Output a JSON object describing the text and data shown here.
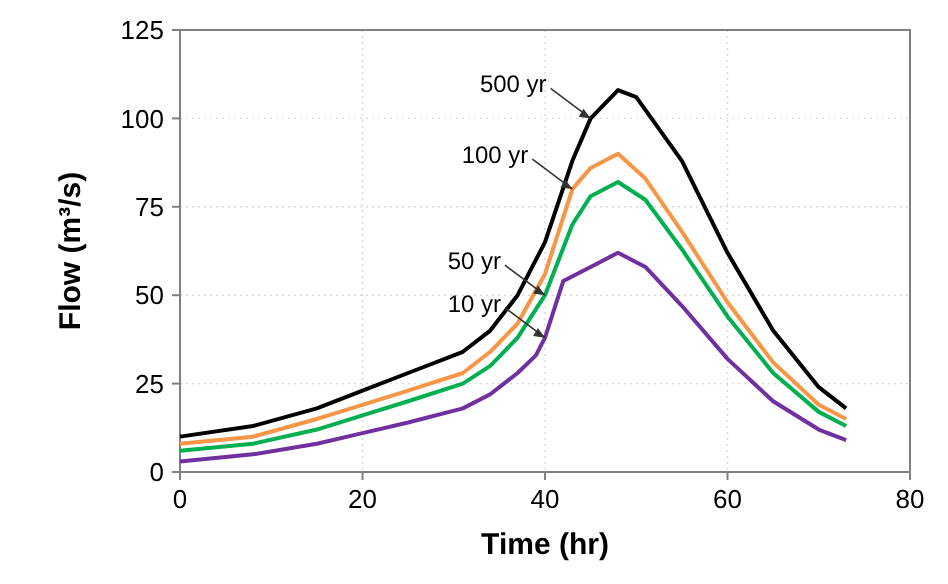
{
  "chart_data": {
    "type": "line",
    "xlabel": "Time (hr)",
    "ylabel": "Flow (m³/s)",
    "xlim": [
      0,
      80
    ],
    "ylim": [
      0,
      125
    ],
    "xticks": [
      0,
      20,
      40,
      60,
      80
    ],
    "yticks": [
      0,
      25,
      50,
      75,
      100,
      125
    ],
    "grid": true,
    "marker": "none",
    "line_style": "solid",
    "series": [
      {
        "color": "#000000",
        "x": [
          0,
          8,
          15,
          20,
          25,
          31,
          34,
          37,
          40,
          43,
          45,
          48,
          50,
          55,
          60,
          65,
          70,
          73
        ],
        "values": [
          10,
          13,
          18,
          23,
          28,
          34,
          40,
          50,
          65,
          88,
          100,
          108,
          106,
          88,
          62,
          40,
          24,
          18
        ]
      },
      {
        "color": "#f79646",
        "x": [
          0,
          8,
          15,
          20,
          25,
          31,
          34,
          37,
          40,
          43,
          45,
          48,
          51,
          55,
          60,
          65,
          70,
          73
        ],
        "values": [
          8,
          10,
          15,
          19,
          23,
          28,
          34,
          42,
          56,
          80,
          86,
          90,
          83,
          68,
          48,
          31,
          19,
          15
        ]
      },
      {
        "color": "#00b050",
        "x": [
          0,
          8,
          15,
          20,
          25,
          31,
          34,
          37,
          40,
          43,
          45,
          48,
          51,
          55,
          60,
          65,
          70,
          73
        ],
        "values": [
          6,
          8,
          12,
          16,
          20,
          25,
          30,
          38,
          50,
          70,
          78,
          82,
          77,
          63,
          44,
          28,
          17,
          13
        ]
      },
      {
        "color": "#7030a0",
        "x": [
          0,
          8,
          15,
          20,
          25,
          31,
          34,
          37,
          39,
          40,
          42,
          45,
          48,
          51,
          55,
          60,
          65,
          70,
          73
        ],
        "values": [
          3,
          5,
          8,
          11,
          14,
          18,
          22,
          28,
          33,
          38,
          54,
          58,
          62,
          58,
          47,
          32,
          20,
          12,
          9
        ]
      }
    ],
    "annotations": [
      {
        "text": "500 yr",
        "x": 45,
        "y": 100
      },
      {
        "text": "100 yr",
        "x": 43,
        "y": 80
      },
      {
        "text": "50 yr",
        "x": 40,
        "y": 50
      },
      {
        "text": "10 yr",
        "x": 40,
        "y": 38
      }
    ]
  }
}
